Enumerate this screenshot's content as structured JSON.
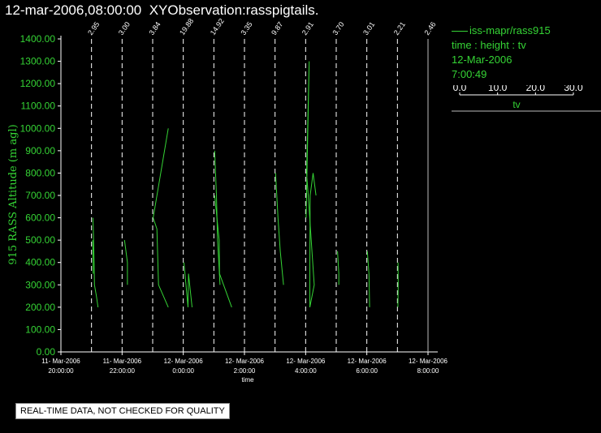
{
  "header": {
    "timestamp": "12-mar-2006,08:00:00",
    "title": "XYObservation:rasspigtails."
  },
  "legend": {
    "series": "iss-mapr/rass915",
    "axes": "time : height : tv",
    "date": "12-Mar-2006",
    "time": "7:00:49",
    "scale_ticks": [
      "0.0",
      "10.0",
      "20.0",
      "30.0"
    ],
    "scale_label": "tv"
  },
  "notice": "REAL-TIME DATA, NOT CHECKED FOR QUALITY",
  "colors": {
    "trace": "#35d435",
    "axis": "#ffffff",
    "background": "#000000",
    "title": "#ffffff"
  },
  "chart_data": {
    "type": "line",
    "ylabel": "915 RASS Altitude (m agl)",
    "xlabel": "time",
    "ylim": [
      0,
      1400
    ],
    "y_ticks": [
      "0.00",
      "100.00",
      "200.00",
      "300.00",
      "400.00",
      "500.00",
      "600.00",
      "700.00",
      "800.00",
      "900.00",
      "1000.00",
      "1100.00",
      "1200.00",
      "1300.00",
      "1400.00"
    ],
    "xlim": [
      "2006-03-11 20:00",
      "2006-03-12 08:00"
    ],
    "x_ticks": [
      {
        "t": "2006-03-11 20:00",
        "date": "11- Mar-2006",
        "time": "20:00:00"
      },
      {
        "t": "2006-03-11 22:00",
        "date": "11- Mar-2006",
        "time": "22:00:00"
      },
      {
        "t": "2006-03-12 00:00",
        "date": "12- Mar-2006",
        "time": "0:00:00"
      },
      {
        "t": "2006-03-12 02:00",
        "date": "12- Mar-2006",
        "time": "2:00:00"
      },
      {
        "t": "2006-03-12 04:00",
        "date": "12- Mar-2006",
        "time": "4:00:00"
      },
      {
        "t": "2006-03-12 06:00",
        "date": "12- Mar-2006",
        "time": "6:00:00"
      },
      {
        "t": "2006-03-12 08:00",
        "date": "12- Mar-2006",
        "time": "8:00:00"
      }
    ],
    "observations": [
      {
        "t": "2006-03-11 21:00",
        "label": "2.95"
      },
      {
        "t": "2006-03-11 22:00",
        "label": "3.00"
      },
      {
        "t": "2006-03-11 23:00",
        "label": "3.84"
      },
      {
        "t": "2006-03-12 00:00",
        "label": "19.88"
      },
      {
        "t": "2006-03-12 01:00",
        "label": "14.92"
      },
      {
        "t": "2006-03-12 02:00",
        "label": "3.35"
      },
      {
        "t": "2006-03-12 03:00",
        "label": "9.87"
      },
      {
        "t": "2006-03-12 04:00",
        "label": "2.91"
      },
      {
        "t": "2006-03-12 05:00",
        "label": "3.70"
      },
      {
        "t": "2006-03-12 06:00",
        "label": "3.01"
      },
      {
        "t": "2006-03-12 07:00",
        "label": "2.21"
      },
      {
        "t": "2006-03-12 08:00",
        "label": "2.46"
      }
    ],
    "series": [
      {
        "name": "iss-mapr/rass915",
        "base": "2006-03-11 21:00",
        "points": [
          [
            0.9,
            600
          ],
          [
            1.6,
            400
          ],
          [
            1.8,
            300
          ],
          [
            3.0,
            250
          ],
          [
            4.0,
            200
          ]
        ]
      },
      {
        "name": "iss-mapr/rass915",
        "base": "2006-03-11 21:00",
        "points": [
          [
            0.7,
            500
          ],
          [
            1.0,
            400
          ],
          [
            1.0,
            350
          ]
        ]
      },
      {
        "name": "iss-mapr/rass915",
        "base": "2006-03-11 22:00",
        "points": [
          [
            1.5,
            500
          ],
          [
            3.3,
            400
          ],
          [
            3.3,
            300
          ]
        ]
      },
      {
        "name": "iss-mapr/rass915",
        "base": "2006-03-11 23:00",
        "points": [
          [
            0.3,
            600
          ],
          [
            2.6,
            550
          ],
          [
            3.2,
            400
          ],
          [
            3.6,
            300
          ],
          [
            9.6,
            200
          ]
        ]
      },
      {
        "name": "iss-mapr/rass915",
        "base": "2006-03-11 23:00",
        "points": [
          [
            0.3,
            600
          ],
          [
            9.6,
            1000
          ]
        ]
      },
      {
        "name": "iss-mapr/rass915",
        "base": "2006-03-12 00:00",
        "points": [
          [
            0.4,
            400
          ],
          [
            2.9,
            200
          ],
          [
            3.2,
            350
          ],
          [
            5.4,
            200
          ]
        ]
      },
      {
        "name": "iss-mapr/rass915",
        "base": "2006-03-12 01:00",
        "points": [
          [
            0.5,
            900
          ],
          [
            1.6,
            700
          ],
          [
            2.3,
            500
          ],
          [
            3.8,
            300
          ]
        ]
      },
      {
        "name": "iss-mapr/rass915",
        "base": "2006-03-12 01:00",
        "points": [
          [
            0.5,
            700
          ],
          [
            3.3,
            500
          ],
          [
            3.5,
            350
          ],
          [
            11.0,
            200
          ]
        ]
      },
      {
        "name": "iss-mapr/rass915",
        "base": "2006-03-12 03:00",
        "points": [
          [
            0.3,
            800
          ],
          [
            1.8,
            600
          ],
          [
            3.2,
            450
          ],
          [
            5.2,
            300
          ]
        ]
      },
      {
        "name": "iss-mapr/rass915",
        "base": "2006-03-12 04:00",
        "points": [
          [
            0.3,
            600
          ],
          [
            2.2,
            1300
          ],
          [
            0.6,
            800
          ],
          [
            1.6,
            700
          ],
          [
            5.3,
            300
          ],
          [
            2.6,
            200
          ]
        ]
      },
      {
        "name": "iss-mapr/rass915",
        "base": "2006-03-12 04:00",
        "points": [
          [
            2.6,
            200
          ],
          [
            2.6,
            400
          ],
          [
            2.8,
            700
          ],
          [
            4.6,
            800
          ],
          [
            6.4,
            700
          ]
        ]
      },
      {
        "name": "iss-mapr/rass915",
        "base": "2006-03-12 05:00",
        "points": [
          [
            0.8,
            450
          ],
          [
            1.6,
            350
          ],
          [
            1.6,
            300
          ]
        ]
      },
      {
        "name": "iss-mapr/rass915",
        "base": "2006-03-12 06:00",
        "points": [
          [
            0.3,
            450
          ],
          [
            1.3,
            350
          ],
          [
            1.7,
            200
          ]
        ]
      },
      {
        "name": "iss-mapr/rass915",
        "base": "2006-03-12 07:00",
        "points": [
          [
            0.4,
            400
          ],
          [
            0.5,
            300
          ],
          [
            0.3,
            200
          ]
        ]
      }
    ]
  }
}
